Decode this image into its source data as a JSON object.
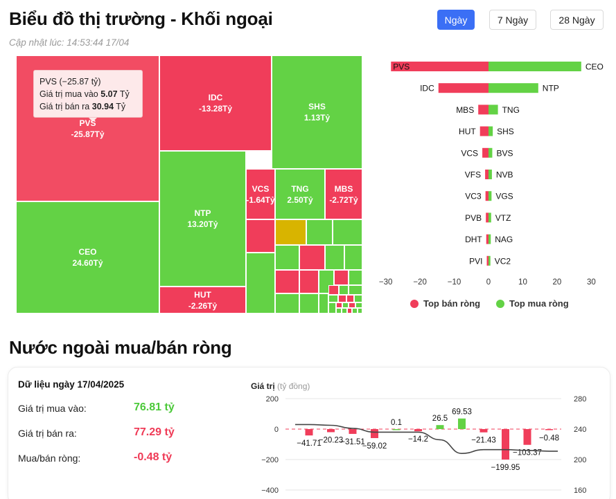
{
  "header": {
    "title": "Biểu đồ thị trường - Khối ngoại",
    "updated": "Cập nhật lúc: 14:53:44 17/04",
    "period_buttons": [
      {
        "label": "Ngày",
        "active": true
      },
      {
        "label": "7 Ngày",
        "active": false
      },
      {
        "label": "28 Ngày",
        "active": false
      }
    ]
  },
  "colors": {
    "sell": "#f03d5a",
    "sell_light": "#f24c63",
    "buy": "#63d245",
    "neutral": "#d8b400",
    "accent": "#3b6ff5"
  },
  "treemap": {
    "tiles": [
      {
        "code": "PVS",
        "value": "-25.87Tỷ",
        "type": "sell"
      },
      {
        "code": "CEO",
        "value": "24.60Tỷ",
        "type": "buy"
      },
      {
        "code": "IDC",
        "value": "-13.28Tỷ",
        "type": "sell"
      },
      {
        "code": "SHS",
        "value": "1.13Tỷ",
        "type": "buy"
      },
      {
        "code": "NTP",
        "value": "13.20Tỷ",
        "type": "buy"
      },
      {
        "code": "HUT",
        "value": "-2.26Tỷ",
        "type": "sell"
      },
      {
        "code": "VCS",
        "value": "-1.64Tỷ",
        "type": "sell"
      },
      {
        "code": "TNG",
        "value": "2.50Tỷ",
        "type": "buy"
      },
      {
        "code": "MBS",
        "value": "-2.72Tỷ",
        "type": "sell"
      }
    ],
    "tooltip": {
      "title": "PVS (−25.87 tỷ)",
      "buy_label": "Giá trị mua vào",
      "buy_value": "5.07",
      "sell_label": "Giá trị bán ra",
      "sell_value": "30.94",
      "unit": "Tỷ"
    }
  },
  "chart_data": [
    {
      "type": "bar",
      "orientation": "horizontal",
      "title": "",
      "xlim": [
        -30,
        30
      ],
      "x_ticks": [
        -30,
        -20,
        -10,
        0,
        10,
        20,
        30
      ],
      "grid": false,
      "legend": "bottom",
      "series": [
        {
          "name": "Top bán ròng",
          "categories": [
            "PVS",
            "IDC",
            "MBS",
            "HUT",
            "VCS",
            "VFS",
            "VC3",
            "PVB",
            "DHT",
            "PVI"
          ],
          "values": [
            -25.87,
            -13.28,
            -2.72,
            -2.26,
            -1.64,
            -0.9,
            -0.8,
            -0.7,
            -0.6,
            -0.4
          ]
        },
        {
          "name": "Top mua ròng",
          "categories": [
            "CEO",
            "NTP",
            "TNG",
            "SHS",
            "BVS",
            "NVB",
            "VGS",
            "VTZ",
            "NAG",
            "VC2"
          ],
          "values": [
            24.6,
            13.2,
            2.5,
            1.13,
            1.0,
            0.9,
            0.8,
            0.7,
            0.6,
            0.5
          ]
        }
      ]
    },
    {
      "type": "bar",
      "title": "",
      "ylabel": "Giá trị",
      "ylabel_unit": "(tỷ đồng)",
      "ylim": [
        -400,
        200
      ],
      "y_ticks": [
        -400,
        -200,
        0,
        200
      ],
      "y2lim": [
        160,
        280
      ],
      "y2_ticks": [
        160,
        200,
        240,
        280
      ],
      "grid": true,
      "series": [
        {
          "name": "",
          "values": [
            -41.71,
            -20.23,
            -31.51,
            -59.02,
            0.1,
            -14.2,
            26.5,
            69.53,
            -21.43,
            -199.95,
            -103.37,
            -0.48
          ]
        },
        {
          "name": "",
          "type": "line",
          "axis": "right",
          "values": [
            246,
            245,
            241,
            236,
            236,
            236,
            226,
            208,
            213,
            213,
            212,
            211
          ]
        }
      ]
    }
  ],
  "card": {
    "heading": "Dữ liệu ngày 17/04/2025",
    "buy_label": "Giá trị mua vào:",
    "buy_value": "76.81 tỷ",
    "sell_label": "Giá trị bán ra:",
    "sell_value": "77.29 tỷ",
    "net_label": "Mua/bán ròng:",
    "net_value": "-0.48 tỷ"
  },
  "section_title": "Nước ngoài mua/bán ròng"
}
